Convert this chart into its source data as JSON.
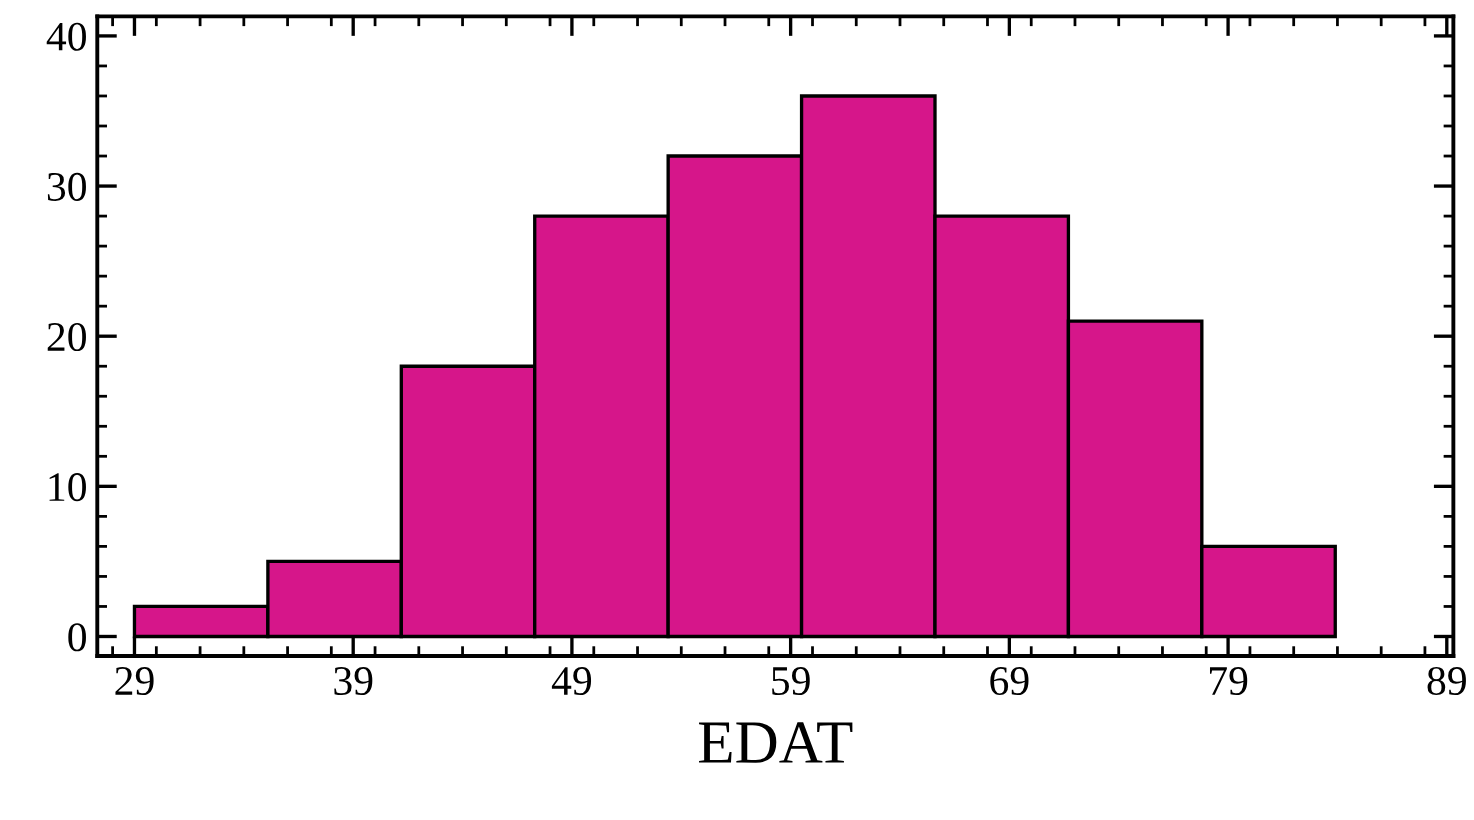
{
  "chart_data": {
    "type": "histogram",
    "xlabel": "EDAT",
    "bins": [
      29,
      35.1,
      41.2,
      47.3,
      53.4,
      59.5,
      65.6,
      71.7,
      77.8,
      83.9
    ],
    "values": [
      2,
      5,
      18,
      28,
      32,
      36,
      28,
      21,
      6
    ],
    "color": "#d6168a",
    "xlim": [
      27.3,
      89.3
    ],
    "xticks": [
      29,
      39,
      49,
      59,
      69,
      79,
      89
    ],
    "ylim": [
      -1.3,
      41.3
    ],
    "yticks": [
      0,
      10,
      20,
      30,
      40
    ],
    "grid": false
  }
}
